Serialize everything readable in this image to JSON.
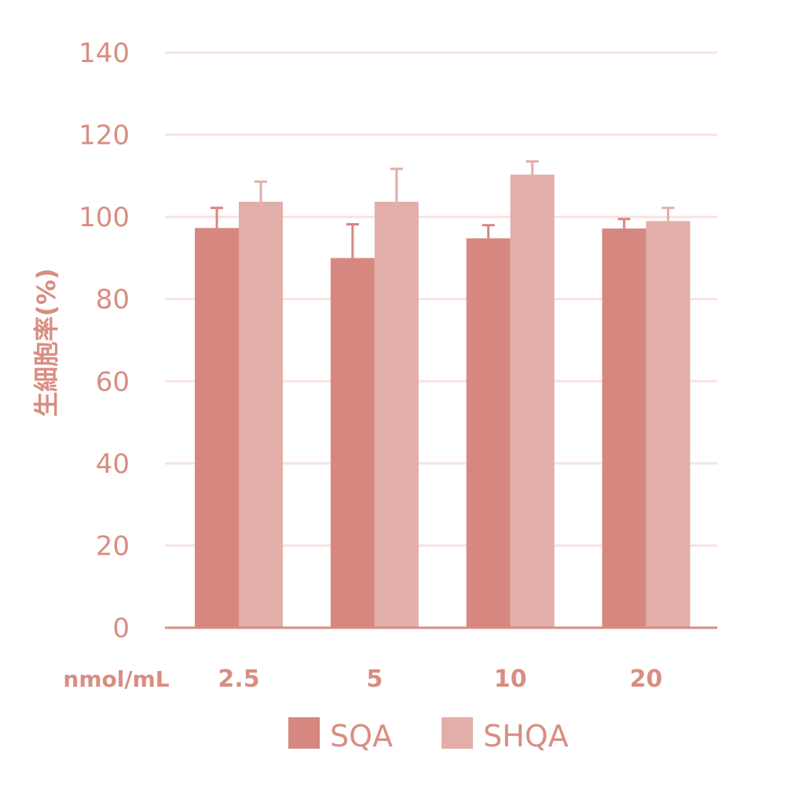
{
  "chart_data": {
    "type": "bar",
    "ylabel": "生細胞率(%)",
    "x_unit_label": "nmol/mL",
    "categories": [
      "2.5",
      "5",
      "10",
      "20"
    ],
    "ylim": [
      0,
      140
    ],
    "yticks": [
      0,
      20,
      40,
      60,
      80,
      100,
      120,
      140
    ],
    "grid": true,
    "legend_position": "bottom",
    "series": [
      {
        "name": "SQA",
        "color": "#d68880",
        "values": [
          97.3,
          90.0,
          94.8,
          97.2
        ],
        "errors": [
          4.9,
          8.2,
          3.2,
          2.3
        ]
      },
      {
        "name": "SHQA",
        "color": "#e2aea9",
        "values": [
          103.7,
          103.7,
          110.3,
          99.0
        ],
        "errors": [
          4.9,
          8.0,
          3.2,
          3.2
        ]
      }
    ]
  }
}
